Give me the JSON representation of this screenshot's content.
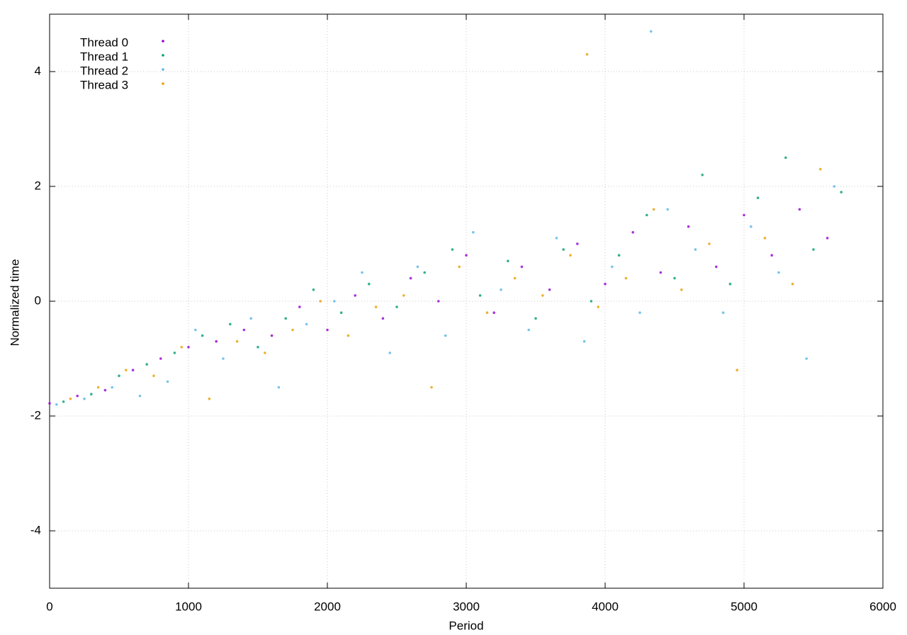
{
  "chart_data": {
    "type": "scatter",
    "xlabel": "Period",
    "ylabel": "Normalized time",
    "xlim": [
      0,
      6000
    ],
    "xticks": [
      0,
      1000,
      2000,
      3000,
      4000,
      5000,
      6000
    ],
    "ylim": [
      -5,
      5
    ],
    "yticks": [
      -4,
      -2,
      0,
      2,
      4
    ],
    "grid": true,
    "legend": "upper left",
    "series": [
      {
        "name": "Thread 0",
        "color": "#9400d3",
        "x": [
          0,
          200,
          400,
          600,
          800,
          1000,
          1200,
          1400,
          1600,
          1800,
          2000,
          2200,
          2400,
          2600,
          2800,
          3000,
          3200,
          3400,
          3600,
          3800,
          4000,
          4200,
          4400,
          4600,
          4800,
          5000,
          5200,
          5400,
          5600
        ],
        "values": [
          -1.78,
          -1.65,
          -1.55,
          -1.2,
          -1.0,
          -0.8,
          -0.7,
          -0.5,
          -0.6,
          -0.1,
          -0.5,
          0.1,
          -0.3,
          0.4,
          0.0,
          0.8,
          -0.2,
          0.6,
          0.2,
          1.0,
          0.3,
          1.2,
          0.5,
          1.3,
          0.6,
          1.5,
          0.8,
          1.6,
          1.1
        ]
      },
      {
        "name": "Thread 1",
        "color": "#009e73",
        "x": [
          100,
          300,
          500,
          700,
          900,
          1100,
          1300,
          1500,
          1700,
          1900,
          2100,
          2300,
          2500,
          2700,
          2900,
          3100,
          3300,
          3500,
          3700,
          3900,
          4100,
          4300,
          4500,
          4700,
          4900,
          5100,
          5300,
          5500,
          5700
        ],
        "values": [
          -1.75,
          -1.62,
          -1.3,
          -1.1,
          -0.9,
          -0.6,
          -0.4,
          -0.8,
          -0.3,
          0.2,
          -0.2,
          0.3,
          -0.1,
          0.5,
          0.9,
          0.1,
          0.7,
          -0.3,
          0.9,
          0.0,
          0.8,
          1.5,
          0.4,
          2.2,
          0.3,
          1.8,
          2.5,
          0.9,
          1.9
        ]
      },
      {
        "name": "Thread 2",
        "color": "#56b4e9",
        "x": [
          50,
          250,
          450,
          650,
          850,
          1050,
          1250,
          1450,
          1650,
          1850,
          2050,
          2250,
          2450,
          2650,
          2850,
          3050,
          3250,
          3450,
          3650,
          3850,
          4050,
          4250,
          4450,
          4650,
          4850,
          5050,
          5250,
          5450,
          5650,
          4330
        ],
        "values": [
          -1.8,
          -1.7,
          -1.5,
          -1.65,
          -1.4,
          -0.5,
          -1.0,
          -0.3,
          -1.5,
          -0.4,
          0.0,
          0.5,
          -0.9,
          0.6,
          -0.6,
          1.2,
          0.2,
          -0.5,
          1.1,
          -0.7,
          0.6,
          -0.2,
          1.6,
          0.9,
          -0.2,
          1.3,
          0.5,
          -1.0,
          2.0,
          4.7
        ]
      },
      {
        "name": "Thread 3",
        "color": "#e69f00",
        "x": [
          150,
          350,
          550,
          750,
          950,
          1150,
          1350,
          1550,
          1750,
          1950,
          2150,
          2350,
          2550,
          2750,
          2950,
          3150,
          3350,
          3550,
          3750,
          3950,
          4150,
          4350,
          4550,
          4750,
          4950,
          5150,
          5350,
          5550,
          3870
        ],
        "values": [
          -1.7,
          -1.5,
          -1.2,
          -1.3,
          -0.8,
          -1.7,
          -0.7,
          -0.9,
          -0.5,
          0.0,
          -0.6,
          -0.1,
          0.1,
          -1.5,
          0.6,
          -0.2,
          0.4,
          0.1,
          0.8,
          -0.1,
          0.4,
          1.6,
          0.2,
          1.0,
          -1.2,
          1.1,
          0.3,
          2.3,
          4.3
        ]
      }
    ]
  }
}
